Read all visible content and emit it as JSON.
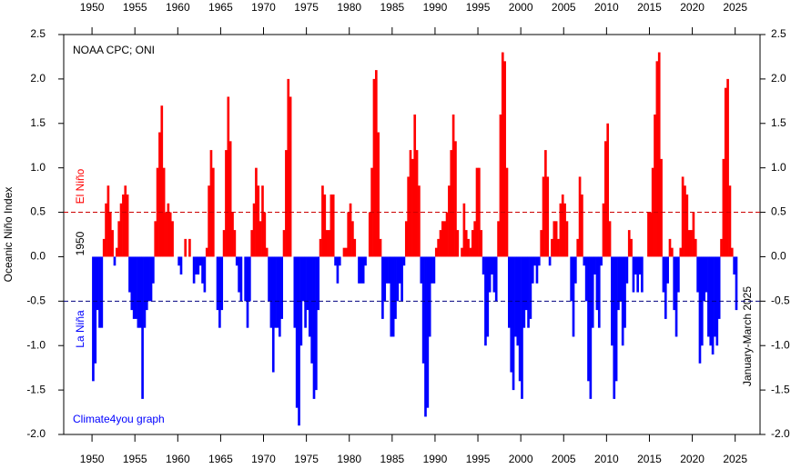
{
  "chart_data": {
    "type": "bar",
    "title": "NOAA CPC; ONI",
    "y_label": "Oceanic Niño Index",
    "credit": "Climate4you graph",
    "start_label": "1950",
    "end_label": "January-March 2025",
    "el_nino_label": "El Niño",
    "la_nina_label": "La Niña",
    "positive_color": "#ff0000",
    "negative_color": "#0000ff",
    "thresholds": [
      {
        "value": 0.5,
        "color": "#cc0000"
      },
      {
        "value": -0.5,
        "color": "#000080"
      }
    ],
    "xlim": [
      1946.7,
      2027.9
    ],
    "xticks": [
      1950,
      1955,
      1960,
      1965,
      1970,
      1975,
      1980,
      1985,
      1990,
      1995,
      2000,
      2005,
      2010,
      2015,
      2020,
      2025
    ],
    "ylim": [
      -2.0,
      2.5
    ],
    "yticks": [
      {
        "value": -2,
        "label": "-2.0"
      },
      {
        "value": -1.5,
        "label": "-1.5"
      },
      {
        "value": -1,
        "label": "-1.0"
      },
      {
        "value": -0.5,
        "label": "-0.5"
      },
      {
        "value": 0,
        "label": "0.0"
      },
      {
        "value": 0.5,
        "label": "0.5"
      },
      {
        "value": 1,
        "label": "1.0"
      },
      {
        "value": 1.5,
        "label": "1.5"
      },
      {
        "value": 2,
        "label": "2.0"
      },
      {
        "value": 2.5,
        "label": "2.5"
      }
    ],
    "x": [
      1950,
      1950.25,
      1950.5,
      1950.75,
      1951,
      1951.25,
      1951.5,
      1951.75,
      1952,
      1952.25,
      1952.5,
      1952.75,
      1953,
      1953.25,
      1953.5,
      1953.75,
      1954,
      1954.25,
      1954.5,
      1954.75,
      1955,
      1955.25,
      1955.5,
      1955.75,
      1956,
      1956.25,
      1956.5,
      1956.75,
      1957,
      1957.25,
      1957.5,
      1957.75,
      1958,
      1958.25,
      1958.5,
      1958.75,
      1959,
      1959.25,
      1959.5,
      1959.75,
      1960,
      1960.25,
      1960.5,
      1960.75,
      1961,
      1961.25,
      1961.5,
      1961.75,
      1962,
      1962.25,
      1962.5,
      1962.75,
      1963,
      1963.25,
      1963.5,
      1963.75,
      1964,
      1964.25,
      1964.5,
      1964.75,
      1965,
      1965.25,
      1965.5,
      1965.75,
      1966,
      1966.25,
      1966.5,
      1966.75,
      1967,
      1967.25,
      1967.5,
      1967.75,
      1968,
      1968.25,
      1968.5,
      1968.75,
      1969,
      1969.25,
      1969.5,
      1969.75,
      1970,
      1970.25,
      1970.5,
      1970.75,
      1971,
      1971.25,
      1971.5,
      1971.75,
      1972,
      1972.25,
      1972.5,
      1972.75,
      1973,
      1973.25,
      1973.5,
      1973.75,
      1974,
      1974.25,
      1974.5,
      1974.75,
      1975,
      1975.25,
      1975.5,
      1975.75,
      1976,
      1976.25,
      1976.5,
      1976.75,
      1977,
      1977.25,
      1977.5,
      1977.75,
      1978,
      1978.25,
      1978.5,
      1978.75,
      1979,
      1979.25,
      1979.5,
      1979.75,
      1980,
      1980.25,
      1980.5,
      1980.75,
      1981,
      1981.25,
      1981.5,
      1981.75,
      1982,
      1982.25,
      1982.5,
      1982.75,
      1983,
      1983.25,
      1983.5,
      1983.75,
      1984,
      1984.25,
      1984.5,
      1984.75,
      1985,
      1985.25,
      1985.5,
      1985.75,
      1986,
      1986.25,
      1986.5,
      1986.75,
      1987,
      1987.25,
      1987.5,
      1987.75,
      1988,
      1988.25,
      1988.5,
      1988.75,
      1989,
      1989.25,
      1989.5,
      1989.75,
      1990,
      1990.25,
      1990.5,
      1990.75,
      1991,
      1991.25,
      1991.5,
      1991.75,
      1992,
      1992.25,
      1992.5,
      1992.75,
      1993,
      1993.25,
      1993.5,
      1993.75,
      1994,
      1994.25,
      1994.5,
      1994.75,
      1995,
      1995.25,
      1995.5,
      1995.75,
      1996,
      1996.25,
      1996.5,
      1996.75,
      1997,
      1997.25,
      1997.5,
      1997.75,
      1998,
      1998.25,
      1998.5,
      1998.75,
      1999,
      1999.25,
      1999.5,
      1999.75,
      2000,
      2000.25,
      2000.5,
      2000.75,
      2001,
      2001.25,
      2001.5,
      2001.75,
      2002,
      2002.25,
      2002.5,
      2002.75,
      2003,
      2003.25,
      2003.5,
      2003.75,
      2004,
      2004.25,
      2004.5,
      2004.75,
      2005,
      2005.25,
      2005.5,
      2005.75,
      2006,
      2006.25,
      2006.5,
      2006.75,
      2007,
      2007.25,
      2007.5,
      2007.75,
      2008,
      2008.25,
      2008.5,
      2008.75,
      2009,
      2009.25,
      2009.5,
      2009.75,
      2010,
      2010.25,
      2010.5,
      2010.75,
      2011,
      2011.25,
      2011.5,
      2011.75,
      2012,
      2012.25,
      2012.5,
      2012.75,
      2013,
      2013.25,
      2013.5,
      2013.75,
      2014,
      2014.25,
      2014.5,
      2014.75,
      2015,
      2015.25,
      2015.5,
      2015.75,
      2016,
      2016.25,
      2016.5,
      2016.75,
      2017,
      2017.25,
      2017.5,
      2017.75,
      2018,
      2018.25,
      2018.5,
      2018.75,
      2019,
      2019.25,
      2019.5,
      2019.75,
      2020,
      2020.25,
      2020.5,
      2020.75,
      2021,
      2021.25,
      2021.5,
      2021.75,
      2022,
      2022.25,
      2022.5,
      2022.75,
      2023,
      2023.25,
      2023.5,
      2023.75,
      2024,
      2024.25,
      2024.5,
      2024.75,
      2025
    ],
    "values": [
      -1.4,
      -1.2,
      -0.6,
      -0.8,
      -0.8,
      0.2,
      0.6,
      0.8,
      0.5,
      0.3,
      -0.1,
      0.1,
      0.4,
      0.6,
      0.7,
      0.8,
      0.7,
      -0.4,
      -0.6,
      -0.7,
      -0.7,
      -0.8,
      -0.8,
      -1.6,
      -0.8,
      -0.6,
      -0.5,
      -0.5,
      -0.3,
      0.4,
      1.0,
      1.4,
      1.7,
      1.0,
      0.5,
      0.6,
      0.5,
      0.4,
      0.0,
      0.0,
      -0.1,
      -0.2,
      0.0,
      0.2,
      0.0,
      0.2,
      0.0,
      -0.3,
      -0.2,
      -0.2,
      -0.1,
      -0.3,
      -0.4,
      0.1,
      0.8,
      1.2,
      1.0,
      0.0,
      -0.6,
      -0.8,
      -0.6,
      0.3,
      1.2,
      1.8,
      1.3,
      0.5,
      0.3,
      -0.1,
      -0.4,
      -0.5,
      0.0,
      -0.5,
      -0.8,
      -0.5,
      0.3,
      0.6,
      1.0,
      0.8,
      0.4,
      0.8,
      0.5,
      0.1,
      -0.5,
      -0.8,
      -1.3,
      -0.8,
      -0.8,
      -0.9,
      -0.7,
      0.3,
      1.2,
      2.0,
      1.8,
      0.0,
      -0.8,
      -1.7,
      -1.9,
      -1.0,
      -0.5,
      -0.8,
      -0.6,
      -0.9,
      -1.2,
      -1.6,
      -1.5,
      -0.6,
      0.2,
      0.8,
      0.7,
      0.3,
      0.3,
      0.7,
      0.7,
      -0.1,
      -0.3,
      -0.1,
      0.0,
      0.1,
      0.1,
      0.5,
      0.6,
      0.4,
      0.2,
      0.0,
      -0.3,
      -0.3,
      -0.3,
      -0.1,
      0.0,
      0.5,
      1.0,
      2.0,
      2.1,
      1.4,
      0.2,
      -0.7,
      -0.5,
      -0.3,
      -0.3,
      -0.9,
      -0.9,
      -0.7,
      -0.5,
      -0.3,
      -0.5,
      -0.1,
      0.4,
      0.9,
      1.2,
      1.1,
      1.6,
      1.2,
      0.8,
      -0.3,
      -1.2,
      -1.8,
      -1.7,
      -0.9,
      -0.3,
      -0.3,
      0.1,
      0.2,
      0.3,
      0.4,
      0.4,
      0.5,
      0.8,
      1.2,
      1.6,
      1.3,
      0.3,
      0.0,
      0.1,
      0.6,
      0.3,
      0.2,
      0.1,
      0.3,
      0.4,
      1.0,
      1.0,
      0.3,
      -0.2,
      -1.0,
      -0.9,
      -0.4,
      -0.2,
      -0.4,
      -0.5,
      0.4,
      1.6,
      2.3,
      2.2,
      1.0,
      -0.8,
      -1.3,
      -1.5,
      -0.9,
      -1.0,
      -1.4,
      -1.6,
      -0.8,
      -0.6,
      -0.8,
      -0.7,
      -0.3,
      -0.1,
      -0.3,
      -0.1,
      0.3,
      0.9,
      1.2,
      0.9,
      -0.1,
      0.2,
      0.4,
      0.4,
      0.2,
      0.6,
      0.7,
      0.6,
      0.4,
      0.0,
      -0.5,
      -0.9,
      -0.3,
      0.2,
      0.9,
      0.7,
      -0.1,
      -0.5,
      -1.4,
      -1.6,
      -0.8,
      -0.2,
      -0.6,
      -0.8,
      -0.1,
      0.6,
      1.3,
      1.5,
      0.4,
      -1.0,
      -1.6,
      -1.4,
      -0.6,
      -0.5,
      -1.0,
      -0.8,
      -0.3,
      0.3,
      0.2,
      -0.4,
      -0.2,
      -0.4,
      -0.2,
      -0.4,
      0.0,
      0.0,
      0.5,
      0.5,
      1.0,
      1.6,
      2.2,
      2.3,
      1.1,
      -0.4,
      -0.7,
      -0.3,
      0.2,
      0.1,
      -0.6,
      -0.9,
      -0.4,
      0.1,
      0.9,
      0.8,
      0.7,
      0.3,
      0.3,
      0.5,
      0.2,
      -0.4,
      -1.2,
      -1.0,
      -0.5,
      -0.4,
      -0.9,
      -1.0,
      -1.1,
      -0.9,
      -1.0,
      -0.7,
      0.2,
      1.1,
      1.9,
      2.0,
      0.8,
      0.1,
      -0.2,
      -0.6
    ]
  }
}
